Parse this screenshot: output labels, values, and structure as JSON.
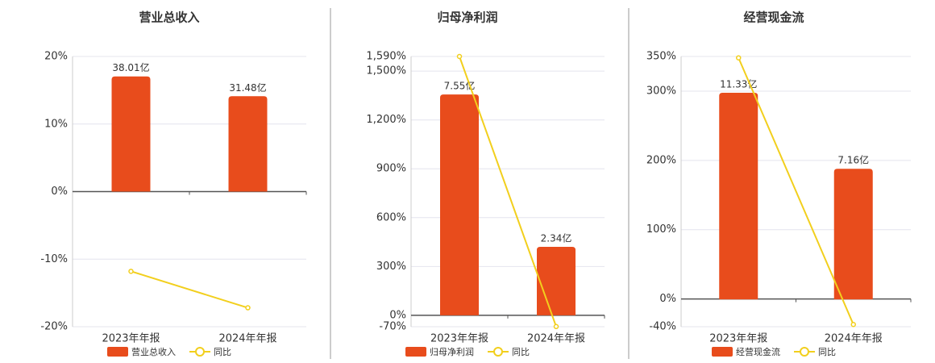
{
  "chart_data": [
    {
      "type": "bar",
      "title": "营业总收入",
      "categories": [
        "2023年年报",
        "2024年年报"
      ],
      "series": [
        {
          "name": "营业总收入",
          "type": "bar",
          "axis": "y2",
          "color": "#e84c1c",
          "values": [
            38.01,
            31.48
          ],
          "value_labels": [
            "38.01亿",
            "31.48亿"
          ]
        },
        {
          "name": "同比",
          "type": "line",
          "color": "#f2cf1d",
          "values": [
            -11.8,
            -17.2
          ]
        }
      ],
      "ylim": [
        -20,
        20
      ],
      "yticks": [
        {
          "value": -20,
          "label": "-20%"
        },
        {
          "value": -10,
          "label": "-10%"
        },
        {
          "value": 0,
          "label": "0%"
        },
        {
          "value": 10,
          "label": "10%"
        },
        {
          "value": 20,
          "label": "20%"
        }
      ],
      "y2lim": [
        -44.6,
        44.6
      ],
      "grid": true
    },
    {
      "type": "bar",
      "title": "归母净利润",
      "categories": [
        "2023年年报",
        "2024年年报"
      ],
      "series": [
        {
          "name": "归母净利润",
          "type": "bar",
          "axis": "y2",
          "color": "#e84c1c",
          "values": [
            7.55,
            2.34
          ],
          "value_labels": [
            "7.55亿",
            "2.34亿"
          ]
        },
        {
          "name": "同比",
          "type": "line",
          "color": "#f2cf1d",
          "values": [
            1590,
            -69
          ]
        }
      ],
      "ylim": [
        -70,
        1590
      ],
      "yticks": [
        {
          "value": -70,
          "label": "-70%"
        },
        {
          "value": 0,
          "label": "0%"
        },
        {
          "value": 300,
          "label": "300%"
        },
        {
          "value": 600,
          "label": "600%"
        },
        {
          "value": 900,
          "label": "900%"
        },
        {
          "value": 1200,
          "label": "1,200%"
        },
        {
          "value": 1500,
          "label": "1,500%"
        },
        {
          "value": 1590,
          "label": "1,590%"
        }
      ],
      "y2lim": [
        -0.39,
        8.85
      ],
      "grid": true
    },
    {
      "type": "bar",
      "title": "经营现金流",
      "categories": [
        "2023年年报",
        "2024年年报"
      ],
      "series": [
        {
          "name": "经营现金流",
          "type": "bar",
          "axis": "y2",
          "color": "#e84c1c",
          "values": [
            11.33,
            7.16
          ],
          "value_labels": [
            "11.33亿",
            "7.16亿"
          ]
        },
        {
          "name": "同比",
          "type": "line",
          "color": "#f2cf1d",
          "values": [
            348,
            -36.8
          ]
        }
      ],
      "ylim": [
        -40,
        350
      ],
      "yticks": [
        {
          "value": -40,
          "label": "-40%"
        },
        {
          "value": 0,
          "label": "0%"
        },
        {
          "value": 100,
          "label": "100%"
        },
        {
          "value": 200,
          "label": "200%"
        },
        {
          "value": 300,
          "label": "300%"
        },
        {
          "value": 350,
          "label": "350%"
        }
      ],
      "y2lim": [
        -1.5,
        13.32
      ],
      "grid": true
    }
  ]
}
